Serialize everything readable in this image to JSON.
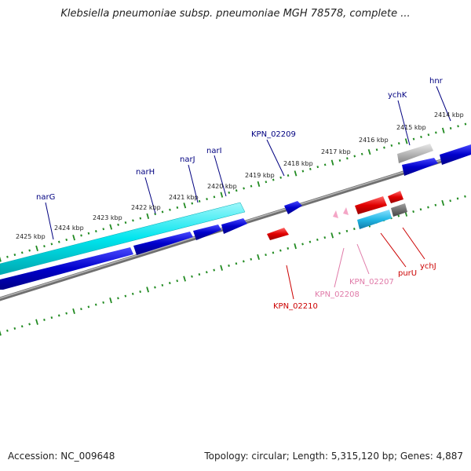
{
  "title": "Klebsiella pneumoniae subsp. pneumoniae MGH 78578, complete ...",
  "footer": {
    "accession": "Accession: NC_009648",
    "summary": "Topology: circular; Length: 5,315,120 bp; Genes: 4,887"
  },
  "colors": {
    "backbone": "#808080",
    "tick_ring": "#228b22",
    "forward_gene": "#0000cc",
    "reverse_gene": "#e00000",
    "pseudo_gene": "#f4a6c6",
    "rna": "#22b8e6",
    "hypothetical": "#aaaaaa",
    "other": "#707070",
    "cds_band": "#00e5ee",
    "label_blue": "#000080",
    "label_red": "#cc0000",
    "label_pink": "#e07aa8"
  },
  "tick_labels": [
    {
      "id": "t2425",
      "text": "2425 kbp"
    },
    {
      "id": "t2424",
      "text": "2424 kbp"
    },
    {
      "id": "t2423",
      "text": "2423 kbp"
    },
    {
      "id": "t2422",
      "text": "2422 kbp"
    },
    {
      "id": "t2421",
      "text": "2421 kbp"
    },
    {
      "id": "t2420",
      "text": "2420 kbp"
    },
    {
      "id": "t2419",
      "text": "2419 kbp"
    },
    {
      "id": "t2418",
      "text": "2418 kbp"
    },
    {
      "id": "t2417",
      "text": "2417 kbp"
    },
    {
      "id": "t2416",
      "text": "2416 kbp"
    },
    {
      "id": "t2415",
      "text": "2415 kbp"
    },
    {
      "id": "t2414",
      "text": "2414 kbp"
    }
  ],
  "gene_labels": [
    {
      "id": "narG",
      "text": "narG",
      "color": "#000080"
    },
    {
      "id": "narH",
      "text": "narH",
      "color": "#000080"
    },
    {
      "id": "narJ",
      "text": "narJ",
      "color": "#000080"
    },
    {
      "id": "narI",
      "text": "narI",
      "color": "#000080"
    },
    {
      "id": "kpn02209",
      "text": "KPN_02209",
      "color": "#000080"
    },
    {
      "id": "ychK",
      "text": "ychK",
      "color": "#000080"
    },
    {
      "id": "hnr",
      "text": "hnr",
      "color": "#000080"
    },
    {
      "id": "kpn02210",
      "text": "KPN_02210",
      "color": "#cc0000"
    },
    {
      "id": "kpn02208",
      "text": "KPN_02208",
      "color": "#e07aa8"
    },
    {
      "id": "kpn02207",
      "text": "KPN_02207",
      "color": "#e07aa8"
    },
    {
      "id": "purU",
      "text": "purU",
      "color": "#cc0000"
    },
    {
      "id": "ychJ",
      "text": "ychJ",
      "color": "#cc0000"
    }
  ]
}
